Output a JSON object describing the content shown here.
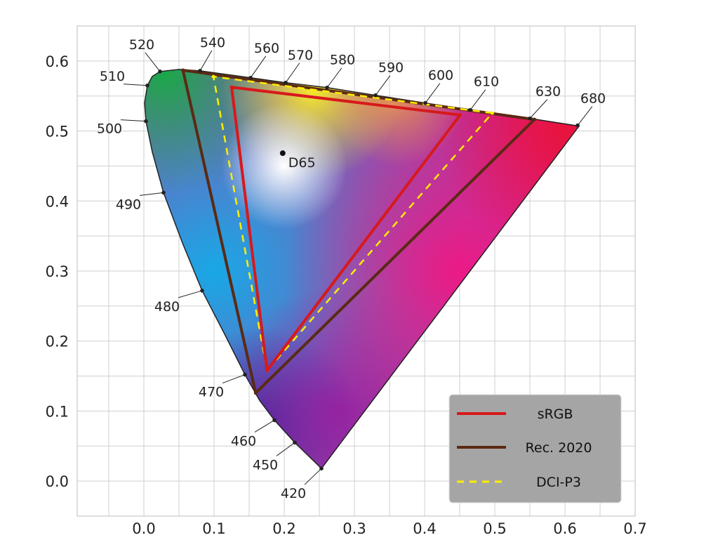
{
  "chart_data": {
    "type": "scatter",
    "title": "",
    "xlabel": "",
    "ylabel": "",
    "xlim": [
      -0.095,
      0.7
    ],
    "ylim": [
      -0.05,
      0.65
    ],
    "grid": true,
    "grid_step": 0.05,
    "xticks": [
      "0.0",
      "0.1",
      "0.2",
      "0.3",
      "0.4",
      "0.5",
      "0.6",
      "0.7"
    ],
    "xtick_values": [
      0,
      0.1,
      0.2,
      0.3,
      0.4,
      0.5,
      0.6,
      0.7
    ],
    "yticks": [
      "0.0",
      "0.1",
      "0.2",
      "0.3",
      "0.4",
      "0.5",
      "0.6"
    ],
    "ytick_values": [
      0,
      0.1,
      0.2,
      0.3,
      0.4,
      0.5,
      0.6
    ],
    "spectral_locus": [
      [
        0.253,
        0.018
      ],
      [
        0.215,
        0.055
      ],
      [
        0.186,
        0.087
      ],
      [
        0.165,
        0.115
      ],
      [
        0.144,
        0.152
      ],
      [
        0.115,
        0.21
      ],
      [
        0.083,
        0.272
      ],
      [
        0.055,
        0.34
      ],
      [
        0.028,
        0.412
      ],
      [
        0.012,
        0.47
      ],
      [
        0.003,
        0.514
      ],
      [
        0.001,
        0.54
      ],
      [
        0.005,
        0.565
      ],
      [
        0.012,
        0.578
      ],
      [
        0.023,
        0.585
      ],
      [
        0.05,
        0.588
      ],
      [
        0.08,
        0.586
      ],
      [
        0.152,
        0.576
      ],
      [
        0.202,
        0.569
      ],
      [
        0.261,
        0.562
      ],
      [
        0.33,
        0.551
      ],
      [
        0.401,
        0.54
      ],
      [
        0.465,
        0.53
      ],
      [
        0.55,
        0.518
      ],
      [
        0.62,
        0.507
      ]
    ],
    "wavelengths": [
      {
        "label": "420",
        "u": 0.253,
        "v": 0.018
      },
      {
        "label": "450",
        "u": 0.215,
        "v": 0.055
      },
      {
        "label": "460",
        "u": 0.186,
        "v": 0.087
      },
      {
        "label": "470",
        "u": 0.144,
        "v": 0.152
      },
      {
        "label": "480",
        "u": 0.083,
        "v": 0.272
      },
      {
        "label": "490",
        "u": 0.028,
        "v": 0.412
      },
      {
        "label": "500",
        "u": 0.003,
        "v": 0.514
      },
      {
        "label": "510",
        "u": 0.005,
        "v": 0.565
      },
      {
        "label": "520",
        "u": 0.023,
        "v": 0.585
      },
      {
        "label": "540",
        "u": 0.08,
        "v": 0.586
      },
      {
        "label": "560",
        "u": 0.152,
        "v": 0.576
      },
      {
        "label": "570",
        "u": 0.202,
        "v": 0.569
      },
      {
        "label": "580",
        "u": 0.261,
        "v": 0.562
      },
      {
        "label": "590",
        "u": 0.33,
        "v": 0.551
      },
      {
        "label": "600",
        "u": 0.401,
        "v": 0.54
      },
      {
        "label": "610",
        "u": 0.465,
        "v": 0.53
      },
      {
        "label": "630",
        "u": 0.55,
        "v": 0.518
      },
      {
        "label": "680",
        "u": 0.618,
        "v": 0.508
      }
    ],
    "white_point": {
      "label": "D65",
      "u": 0.1978,
      "v": 0.4683
    },
    "series": [
      {
        "name": "sRGB",
        "color": "#d7191c",
        "style": "solid",
        "points": [
          [
            0.4507,
            0.5229
          ],
          [
            0.125,
            0.5625
          ],
          [
            0.1754,
            0.1579
          ]
        ]
      },
      {
        "name": "Rec. 2020",
        "color": "#5a2a14",
        "style": "solid",
        "points": [
          [
            0.5566,
            0.5165
          ],
          [
            0.0557,
            0.5868
          ],
          [
            0.1593,
            0.1258
          ]
        ]
      },
      {
        "name": "DCI-P3",
        "color": "#ffee00",
        "style": "dashed",
        "points": [
          [
            0.4964,
            0.5256
          ],
          [
            0.0991,
            0.5777
          ],
          [
            0.1754,
            0.1579
          ]
        ]
      }
    ],
    "legend_position": "bottom-right"
  }
}
